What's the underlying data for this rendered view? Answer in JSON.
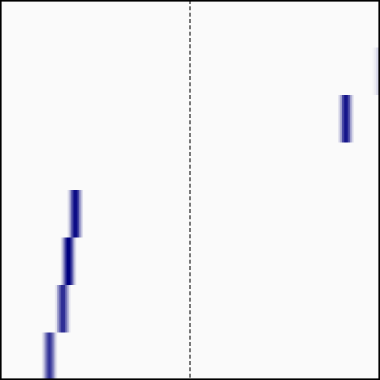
{
  "chart_data": {
    "type": "heatmap",
    "title": "",
    "xlabel": "",
    "ylabel": "",
    "grid": false,
    "legend": "none",
    "background_color": "#fafafa",
    "frame_color": "#000000",
    "reference_line": {
      "x": 0.5,
      "style": "dashed",
      "color": "#000000"
    },
    "xlim": [
      0,
      1
    ],
    "ylim": [
      0,
      8
    ],
    "row_step": 1,
    "column_shades": [
      0.12,
      0.4,
      0.75,
      1.0,
      1.0,
      0.75,
      0.4,
      0.12
    ],
    "column_step": 0.005,
    "cell_color": "#00007f",
    "points": [
      {
        "row": 0,
        "x": 0.13,
        "intensity": 0.75
      },
      {
        "row": 1,
        "x": 0.165,
        "intensity": 0.8
      },
      {
        "row": 2,
        "x": 0.18,
        "intensity": 1.0
      },
      {
        "row": 3,
        "x": 0.198,
        "intensity": 0.95
      },
      {
        "row": 5,
        "x": 0.91,
        "intensity": 0.9
      },
      {
        "row": 6,
        "x": 1.0,
        "intensity": 0.15
      }
    ]
  }
}
